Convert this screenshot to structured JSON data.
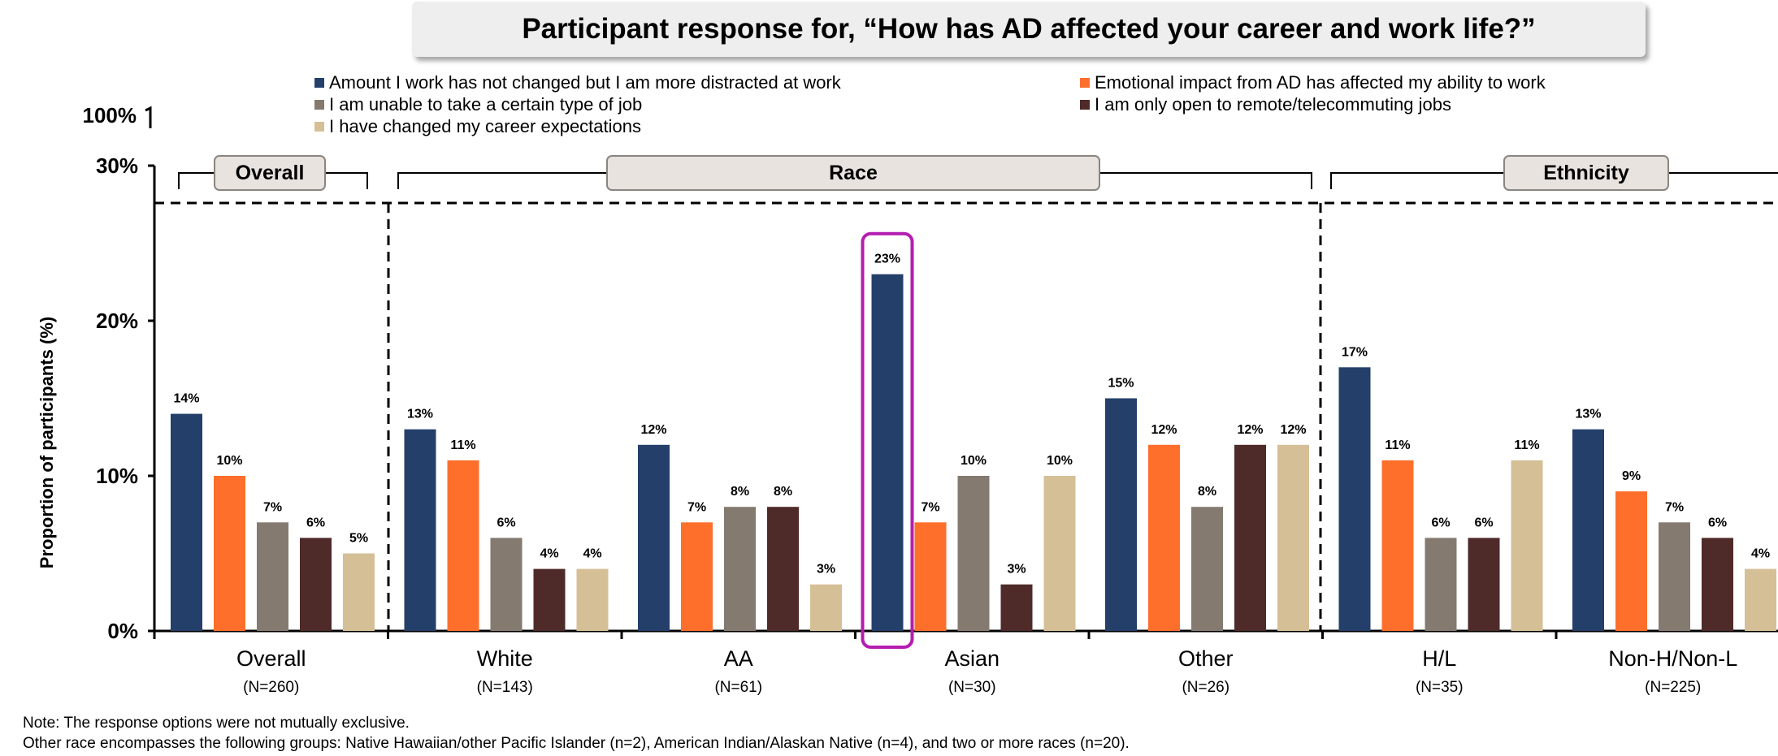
{
  "chart_data": {
    "type": "bar",
    "title": "Participant response for, “How has AD affected your career and work life?”",
    "ylabel": "Proportion of participants (%)",
    "ylim": [
      0,
      30
    ],
    "y_ticks": [
      "0%",
      "10%",
      "20%",
      "30%"
    ],
    "axis_break_label": "100%",
    "group_labels": [
      {
        "label": "Overall",
        "spans": [
          "Overall"
        ]
      },
      {
        "label": "Race",
        "spans": [
          "White",
          "AA",
          "Asian",
          "Other"
        ]
      },
      {
        "label": "Ethnicity",
        "spans": [
          "H/L",
          "Non-H/Non-L"
        ]
      }
    ],
    "categories": [
      {
        "name": "Overall",
        "n": "(N=260)"
      },
      {
        "name": "White",
        "n": "(N=143)"
      },
      {
        "name": "AA",
        "n": "(N=61)"
      },
      {
        "name": "Asian",
        "n": "(N=30)"
      },
      {
        "name": "Other",
        "n": "(N=26)"
      },
      {
        "name": "H/L",
        "n": "(N=35)"
      },
      {
        "name": "Non-H/Non-L",
        "n": "(N=225)"
      }
    ],
    "series": [
      {
        "name": "Amount I work has not changed but I am more distracted at work",
        "color": "#243f6a",
        "values": [
          14,
          13,
          12,
          23,
          15,
          17,
          13
        ]
      },
      {
        "name": "Emotional impact from AD has affected my ability to work",
        "color": "#fd6f2b",
        "values": [
          10,
          11,
          7,
          7,
          12,
          11,
          9
        ]
      },
      {
        "name": "I am unable to take a certain type of job",
        "color": "#857a6f",
        "values": [
          7,
          6,
          8,
          10,
          8,
          6,
          7
        ]
      },
      {
        "name": "I am only open to remote/telecommuting jobs",
        "color": "#4e2a29",
        "values": [
          6,
          4,
          8,
          3,
          12,
          6,
          6
        ]
      },
      {
        "name": "I have changed my career expectations",
        "color": "#d5bf96",
        "values": [
          5,
          4,
          3,
          10,
          12,
          11,
          4
        ]
      }
    ],
    "highlight": {
      "category": "Asian",
      "series": 0,
      "color": "#b41db0"
    },
    "grid": false,
    "legend_position": "top"
  },
  "footnotes": [
    "Note: The response options were not mutually exclusive.",
    "Other race encompasses the following groups: Native Hawaiian/other Pacific Islander (n=2), American Indian/Alaskan Native (n=4), and two or more races (n=20)."
  ]
}
